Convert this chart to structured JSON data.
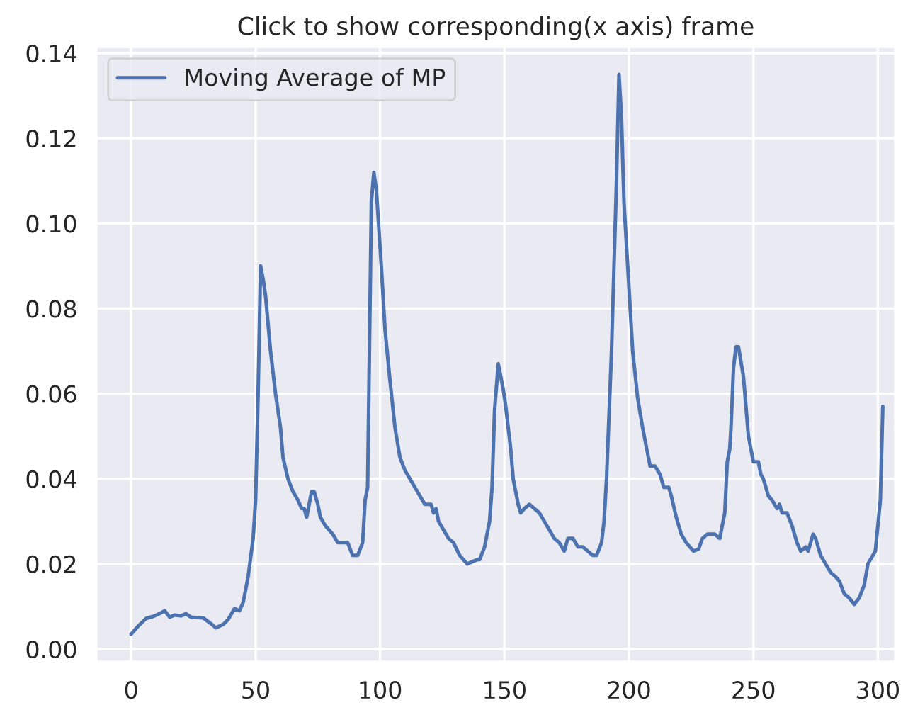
{
  "chart_data": {
    "type": "line",
    "title": "Click to show corresponding(x axis) frame",
    "legend": "top left",
    "grid": true,
    "xlim": [
      -14,
      307
    ],
    "xticks": [
      0,
      50,
      100,
      150,
      200,
      250,
      300
    ],
    "ylim": [
      -0.003,
      0.1415
    ],
    "yticks": [
      {
        "value": 0,
        "label": "0.00"
      },
      {
        "value": 0.02,
        "label": "0.02"
      },
      {
        "value": 0.04,
        "label": "0.04"
      },
      {
        "value": 0.06,
        "label": "0.06"
      },
      {
        "value": 0.08,
        "label": "0.08"
      },
      {
        "value": 0.1,
        "label": "0.10"
      },
      {
        "value": 0.12,
        "label": "0.12"
      },
      {
        "value": 0.14,
        "label": "0.14"
      }
    ],
    "series": [
      {
        "name": "Moving Average of MP",
        "color": "#4c72b0",
        "x": [
          0,
          3,
          6,
          9,
          12,
          13.5,
          15.5,
          17.5,
          20,
          22,
          24,
          29,
          32,
          34,
          37,
          39,
          41.5,
          43.5,
          45,
          47,
          49,
          50,
          51,
          52,
          53,
          54,
          56,
          58,
          60,
          61,
          63,
          65,
          67,
          68.5,
          69.5,
          70.5,
          71.5,
          72.5,
          73.5,
          75,
          76,
          78,
          81,
          83,
          85,
          87,
          89,
          91,
          93,
          94,
          95,
          95.5,
          96.5,
          97.5,
          98.5,
          100.5,
          102,
          104,
          106,
          108,
          110,
          113,
          116,
          118,
          120.5,
          121.5,
          122.5,
          123.5,
          125.5,
          127.5,
          129.5,
          132,
          135,
          137,
          139,
          140,
          142,
          144,
          145,
          146,
          147.5,
          149.5,
          150.5,
          152.5,
          153.5,
          155.5,
          156.5,
          158,
          160,
          162,
          164,
          166,
          168,
          170,
          172,
          174,
          175.5,
          177.5,
          179.5,
          181.5,
          183.5,
          185.5,
          187,
          189,
          190,
          191,
          193,
          195,
          196,
          197,
          198,
          200,
          201.5,
          203.5,
          205.5,
          207.5,
          208.5,
          210.5,
          212.5,
          214,
          216,
          217,
          219,
          221,
          223,
          226,
          228,
          229.5,
          231.5,
          234.5,
          236.5,
          238.5,
          239.5,
          240.5,
          241,
          242,
          243,
          244,
          246,
          247,
          248,
          250,
          252,
          253,
          254,
          256,
          257.5,
          258.5,
          259.5,
          260.5,
          261.5,
          263.5,
          265.5,
          267.5,
          269,
          271,
          272,
          274,
          275,
          277,
          279,
          281,
          283,
          284.5,
          286.5,
          288.5,
          290.5,
          292.5,
          294.5,
          296,
          298,
          299,
          301,
          302
        ],
        "values": [
          0.0035,
          0.0055,
          0.0072,
          0.0077,
          0.0085,
          0.009,
          0.0075,
          0.008,
          0.0078,
          0.0083,
          0.0075,
          0.0073,
          0.006,
          0.005,
          0.0058,
          0.007,
          0.0095,
          0.009,
          0.011,
          0.017,
          0.026,
          0.035,
          0.06,
          0.09,
          0.087,
          0.083,
          0.07,
          0.06,
          0.052,
          0.045,
          0.04,
          0.037,
          0.035,
          0.033,
          0.033,
          0.031,
          0.034,
          0.037,
          0.037,
          0.034,
          0.031,
          0.029,
          0.027,
          0.025,
          0.025,
          0.025,
          0.022,
          0.022,
          0.025,
          0.035,
          0.038,
          0.06,
          0.105,
          0.112,
          0.108,
          0.09,
          0.075,
          0.063,
          0.052,
          0.045,
          0.042,
          0.039,
          0.036,
          0.034,
          0.034,
          0.032,
          0.033,
          0.03,
          0.028,
          0.026,
          0.025,
          0.022,
          0.02,
          0.0205,
          0.021,
          0.021,
          0.024,
          0.03,
          0.038,
          0.056,
          0.067,
          0.061,
          0.057,
          0.047,
          0.04,
          0.034,
          0.032,
          0.033,
          0.034,
          0.033,
          0.032,
          0.03,
          0.028,
          0.026,
          0.025,
          0.023,
          0.026,
          0.026,
          0.024,
          0.024,
          0.023,
          0.022,
          0.022,
          0.025,
          0.03,
          0.04,
          0.07,
          0.11,
          0.135,
          0.125,
          0.105,
          0.085,
          0.07,
          0.059,
          0.052,
          0.046,
          0.043,
          0.043,
          0.041,
          0.038,
          0.038,
          0.036,
          0.031,
          0.027,
          0.025,
          0.023,
          0.0235,
          0.026,
          0.027,
          0.027,
          0.026,
          0.032,
          0.044,
          0.047,
          0.052,
          0.066,
          0.071,
          0.071,
          0.064,
          0.057,
          0.05,
          0.044,
          0.044,
          0.041,
          0.04,
          0.036,
          0.035,
          0.034,
          0.033,
          0.034,
          0.032,
          0.032,
          0.029,
          0.025,
          0.023,
          0.024,
          0.023,
          0.027,
          0.026,
          0.022,
          0.02,
          0.018,
          0.017,
          0.016,
          0.013,
          0.012,
          0.0105,
          0.012,
          0.015,
          0.02,
          0.022,
          0.023,
          0.035,
          0.057
        ]
      }
    ]
  }
}
